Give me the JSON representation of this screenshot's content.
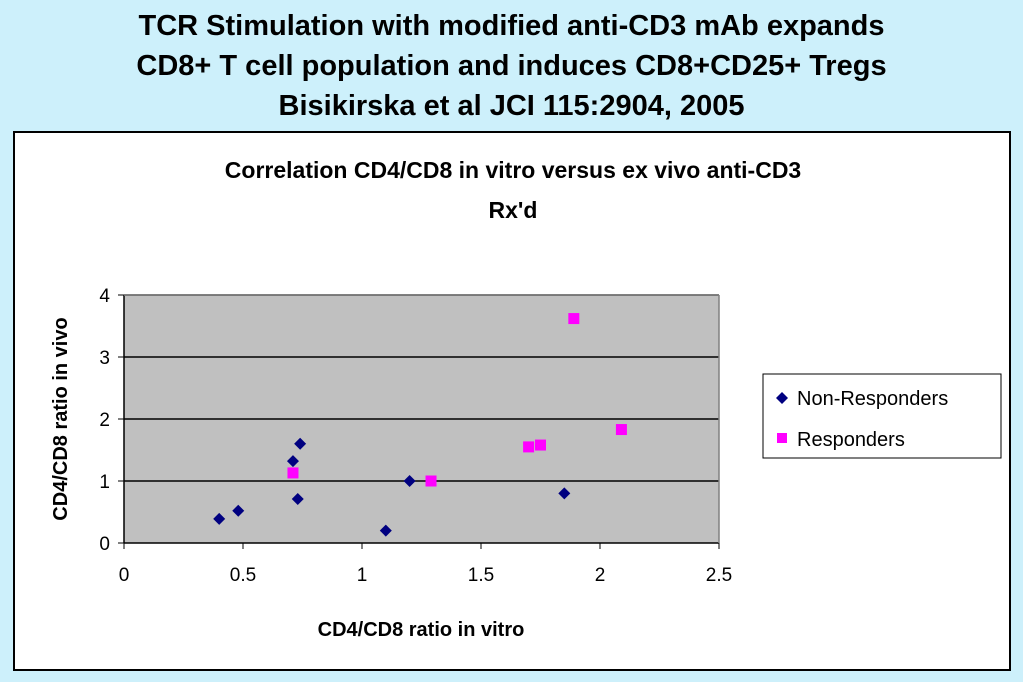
{
  "slide": {
    "title_lines": [
      "TCR Stimulation with modified anti-CD3 mAb expands",
      "CD8+ T cell population and induces CD8+CD25+ Tregs",
      "Bisikirska et al JCI 115:2904, 2005"
    ]
  },
  "colors": {
    "background": "#cdf0fb",
    "plot_area": "#c0c0c0",
    "non_responders": "#000080",
    "responders": "#ff00ff"
  },
  "chart_data": {
    "type": "scatter",
    "title_lines": [
      "Correlation CD4/CD8 in vitro versus ex vivo anti-CD3",
      "Rx'd"
    ],
    "xlabel": "CD4/CD8 ratio in vitro",
    "ylabel": "CD4/CD8 ratio in vivo",
    "xlim": [
      0,
      2.5
    ],
    "ylim": [
      0,
      4
    ],
    "xticks": [
      "0",
      "0.5",
      "1",
      "1.5",
      "2",
      "2.5"
    ],
    "xtick_values": [
      0,
      0.5,
      1,
      1.5,
      2,
      2.5
    ],
    "yticks": [
      "0",
      "1",
      "2",
      "3",
      "4"
    ],
    "ytick_values": [
      0,
      1,
      2,
      3,
      4
    ],
    "grid": "horizontal major gridlines",
    "legend_position": "right",
    "series": [
      {
        "name": "Non-Responders",
        "marker": "diamond",
        "color": "#000080",
        "points": [
          [
            0.4,
            0.39
          ],
          [
            0.48,
            0.52
          ],
          [
            0.71,
            1.32
          ],
          [
            0.74,
            1.6
          ],
          [
            0.73,
            0.71
          ],
          [
            1.1,
            0.2
          ],
          [
            1.2,
            1.0
          ],
          [
            1.85,
            0.8
          ]
        ]
      },
      {
        "name": "Responders",
        "marker": "square",
        "color": "#ff00ff",
        "points": [
          [
            0.71,
            1.13
          ],
          [
            1.29,
            1.0
          ],
          [
            1.7,
            1.55
          ],
          [
            1.75,
            1.58
          ],
          [
            1.89,
            3.62
          ],
          [
            2.09,
            1.83
          ]
        ]
      }
    ]
  }
}
